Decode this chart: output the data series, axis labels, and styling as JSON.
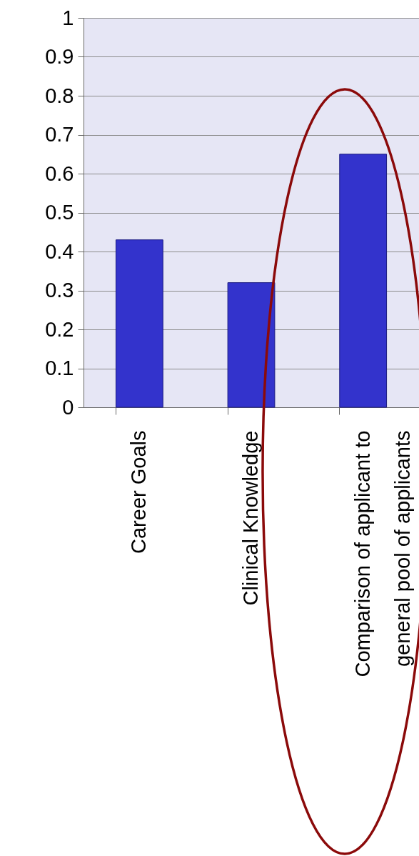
{
  "chart_data": {
    "type": "bar",
    "categories": [
      "Career Goals",
      "Clinical Knowledge",
      "Comparison of applicant to general pool of applicants"
    ],
    "values": [
      0.43,
      0.32,
      0.65
    ],
    "color": "#3333cc",
    "ylim": [
      0,
      1
    ],
    "yticks": [
      0,
      0.1,
      0.2,
      0.3,
      0.4,
      0.5,
      0.6,
      0.7,
      0.8,
      0.9,
      1
    ],
    "grid": "y"
  }
}
